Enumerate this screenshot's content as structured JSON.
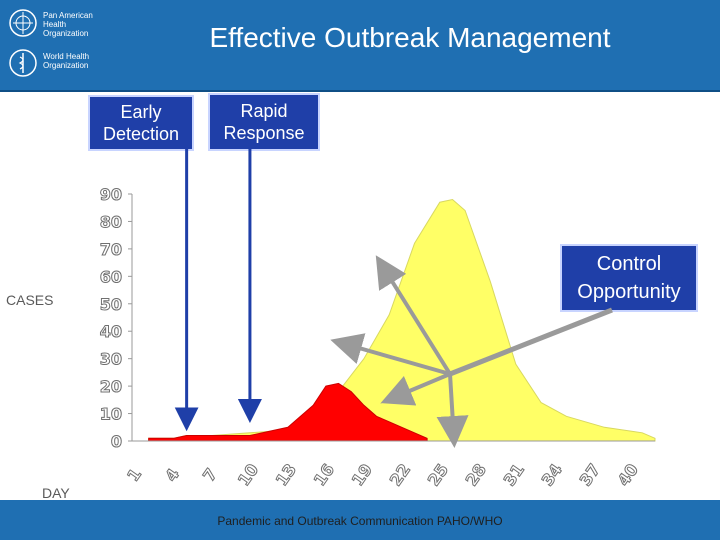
{
  "header": {
    "title": "Effective Outbreak Management",
    "org1": [
      "Pan American",
      "Health",
      "Organization"
    ],
    "org2": [
      "World Health",
      "Organization"
    ]
  },
  "callouts": {
    "early_detection": [
      "Early",
      "Detection"
    ],
    "rapid_response": [
      "Rapid",
      "Response"
    ],
    "control_opportunity": [
      "Control",
      "Opportunity"
    ]
  },
  "footer": {
    "text": "Pandemic and Outbreak Communication PAHO/WHO"
  },
  "colors": {
    "header": "#1f6fb2",
    "callout": "#1f3fa8",
    "uncontrolled": "#ffff66",
    "controlled": "#ff0000",
    "arrow_blue": "#1f3fa8",
    "arrow_gray": "#9a9a9a"
  },
  "chart_data": {
    "type": "area",
    "xlabel": "DAY",
    "ylabel": "CASES",
    "ylim": [
      0,
      90
    ],
    "xlim": [
      0,
      41
    ],
    "yticks": [
      0,
      10,
      20,
      30,
      40,
      50,
      60,
      70,
      80,
      90
    ],
    "xticks": [
      1,
      4,
      7,
      10,
      13,
      16,
      19,
      22,
      25,
      28,
      31,
      34,
      37,
      40
    ],
    "grid": false,
    "series": [
      {
        "values": [
          [
            1,
            1
          ],
          [
            3,
            1
          ],
          [
            4,
            2
          ],
          [
            6,
            2
          ],
          [
            9,
            3
          ],
          [
            12,
            4
          ],
          [
            14,
            10
          ],
          [
            16,
            18
          ],
          [
            18,
            30
          ],
          [
            20,
            46
          ],
          [
            22,
            72
          ],
          [
            24,
            87
          ],
          [
            25,
            88
          ],
          [
            26,
            84
          ],
          [
            28,
            58
          ],
          [
            30,
            28
          ],
          [
            32,
            14
          ],
          [
            34,
            9
          ],
          [
            37,
            5
          ],
          [
            40,
            3
          ],
          [
            41,
            1
          ]
        ]
      },
      {
        "values": [
          [
            1,
            1
          ],
          [
            3,
            1
          ],
          [
            4,
            2
          ],
          [
            6,
            2
          ],
          [
            9,
            2
          ],
          [
            11,
            4
          ],
          [
            12,
            5
          ],
          [
            14,
            13
          ],
          [
            15,
            20
          ],
          [
            16,
            21
          ],
          [
            17,
            18
          ],
          [
            18,
            13
          ],
          [
            19,
            9
          ],
          [
            20,
            7
          ],
          [
            21,
            5
          ],
          [
            23,
            1
          ]
        ]
      }
    ],
    "annotations": [
      {
        "label": "Early Detection",
        "x": 4,
        "y": 5
      },
      {
        "label": "Rapid Response",
        "x": 9,
        "y": 8
      }
    ]
  }
}
